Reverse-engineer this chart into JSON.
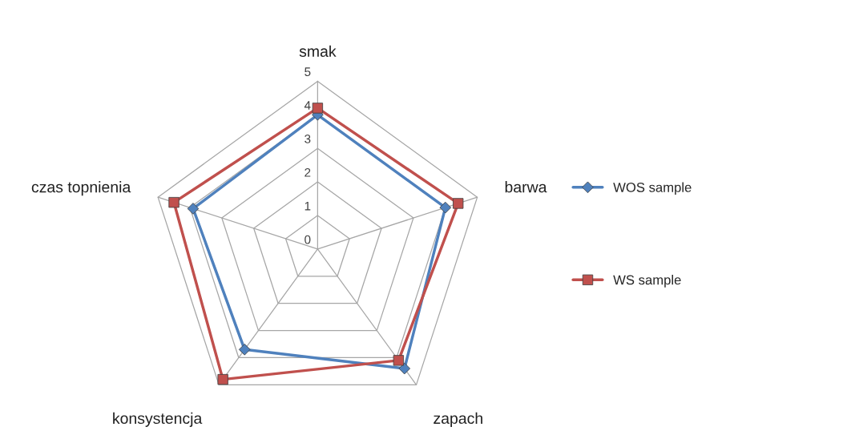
{
  "chart_data": {
    "type": "radar",
    "categories": [
      "smak",
      "barwa",
      "zapach",
      "konsystencja",
      "czas topnienia"
    ],
    "series": [
      {
        "name": "WOS sample",
        "color": "#4f81bd",
        "marker": "diamond",
        "values": [
          4.0,
          4.0,
          4.4,
          3.7,
          3.9
        ]
      },
      {
        "name": "WS sample",
        "color": "#c0504d",
        "marker": "square",
        "values": [
          4.2,
          4.4,
          4.1,
          4.8,
          4.5
        ]
      }
    ],
    "ylim": [
      0,
      5
    ],
    "yticks": [
      0,
      1,
      2,
      3,
      4,
      5
    ],
    "grid": true,
    "legend": "right"
  }
}
